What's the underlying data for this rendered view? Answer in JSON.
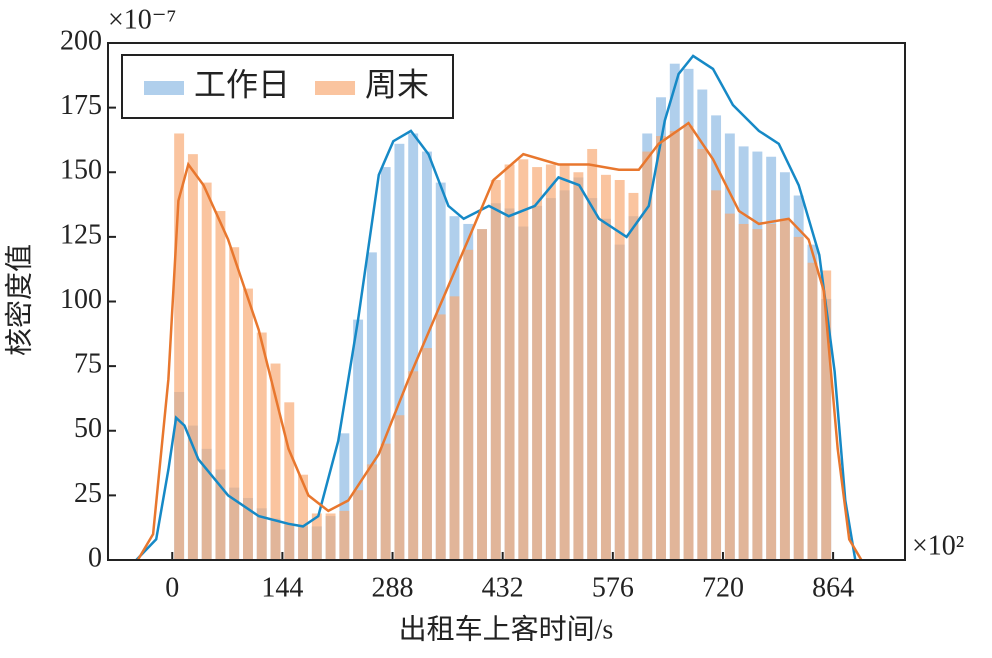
{
  "chart_data": {
    "type": "histogram",
    "x_label": "出租车上客时间/s",
    "y_label": "核密度值",
    "y_multiplier": "×10⁻⁷",
    "x_multiplier": "×10²",
    "legend_loc": "upper left",
    "xlim": [
      -84,
      958
    ],
    "ylim": [
      0,
      200
    ],
    "xticks": [
      0,
      144,
      288,
      432,
      576,
      720,
      864
    ],
    "yticks": [
      0,
      25,
      50,
      75,
      100,
      125,
      150,
      175,
      200
    ],
    "bins": [
      0,
      18,
      36,
      54,
      72,
      90,
      108,
      126,
      144,
      162,
      180,
      198,
      216,
      234,
      252,
      270,
      288,
      306,
      324,
      342,
      360,
      378,
      396,
      414,
      432,
      450,
      468,
      486,
      504,
      522,
      540,
      558,
      576,
      594,
      612,
      630,
      648,
      666,
      684,
      702,
      720,
      738,
      756,
      774,
      792,
      810,
      828,
      846,
      864
    ],
    "series": [
      {
        "name": "工作日",
        "color": "#7fb2e0",
        "values": [
          65,
          52,
          43,
          35,
          28,
          24,
          20,
          16,
          14,
          13,
          13,
          17,
          49,
          93,
          119,
          152,
          161,
          165,
          158,
          146,
          133,
          130,
          128,
          138,
          136,
          129,
          137,
          140,
          143,
          148,
          140,
          132,
          122,
          133,
          165,
          179,
          192,
          190,
          182,
          172,
          165,
          160,
          158,
          156,
          150,
          141,
          122,
          101
        ]
      },
      {
        "name": "周末",
        "color": "#f7a872",
        "values": [
          165,
          157,
          146,
          135,
          121,
          105,
          88,
          76,
          61,
          33,
          18,
          18,
          19,
          27,
          37,
          45,
          56,
          73,
          82,
          95,
          102,
          120,
          128,
          147,
          153,
          155,
          152,
          153,
          153,
          150,
          159,
          149,
          147,
          142,
          158,
          164,
          166,
          168,
          159,
          143,
          134,
          130,
          128,
          130,
          132,
          125,
          115,
          112
        ]
      }
    ],
    "kde": [
      {
        "color": "#1689c6",
        "x": [
          -47,
          -21,
          -5,
          5,
          16,
          34,
          73,
          113,
          152,
          171,
          191,
          217,
          243,
          270,
          289,
          312,
          335,
          361,
          381,
          414,
          440,
          474,
          505,
          532,
          558,
          594,
          623,
          644,
          662,
          681,
          707,
          733,
          767,
          793,
          819,
          846,
          866,
          880,
          893
        ],
        "values": [
          0,
          8,
          35,
          55,
          52,
          39,
          25,
          17,
          14,
          13,
          17,
          46,
          93,
          149,
          162,
          166,
          157,
          137,
          132,
          137,
          133,
          137,
          148,
          145,
          132,
          125,
          137,
          170,
          188,
          195,
          190,
          176,
          166,
          161,
          145,
          118,
          73,
          23,
          0
        ]
      },
      {
        "color": "#e8772e",
        "x": [
          -45,
          -25,
          -5,
          8,
          21,
          41,
          73,
          113,
          152,
          178,
          204,
          230,
          270,
          309,
          348,
          387,
          420,
          459,
          505,
          545,
          584,
          610,
          636,
          675,
          707,
          741,
          767,
          806,
          832,
          852,
          870,
          885,
          901
        ],
        "values": [
          0,
          10,
          70,
          139,
          153,
          145,
          124,
          89,
          43,
          25,
          19,
          23,
          41,
          70,
          97,
          124,
          147,
          157,
          153,
          153,
          151,
          151,
          161,
          169,
          155,
          135,
          130,
          132,
          124,
          104,
          43,
          8,
          0
        ]
      }
    ]
  }
}
